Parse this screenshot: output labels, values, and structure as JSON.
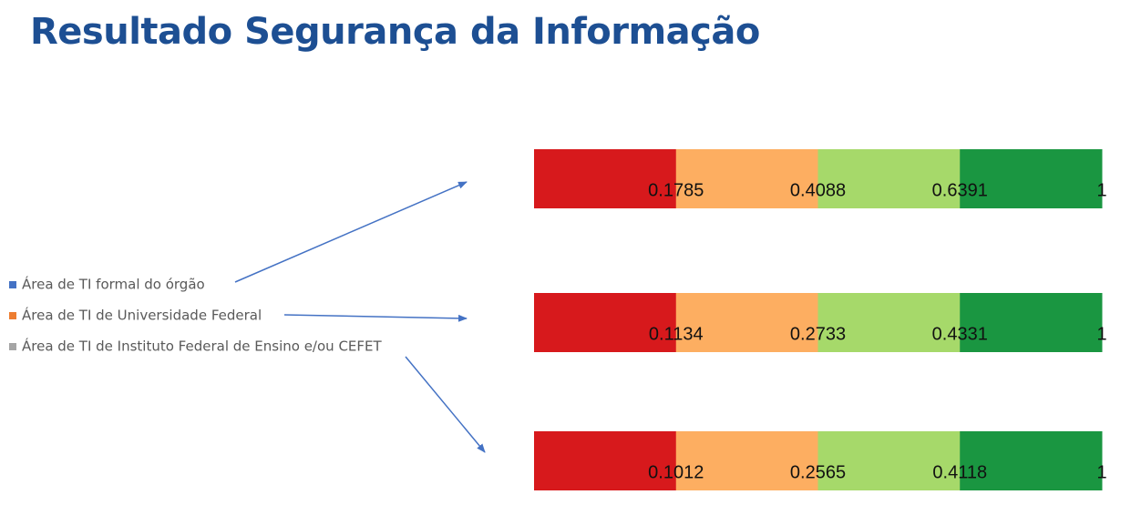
{
  "header": {
    "title": "Resultado Segurança da Informação"
  },
  "legend": {
    "items": [
      "Área de TI formal do órgão",
      "Área de TI de Universidade Federal",
      "Área de TI de Instituto Federal de Ensino e/ou CEFET"
    ]
  },
  "bars": [
    {
      "labels": [
        "0.1785",
        "0.4088",
        "0.6391",
        "1"
      ]
    },
    {
      "labels": [
        "0.1134",
        "0.2733",
        "0.4331",
        "1"
      ]
    },
    {
      "labels": [
        "0.1012",
        "0.2565",
        "0.4118",
        "1"
      ]
    }
  ]
}
